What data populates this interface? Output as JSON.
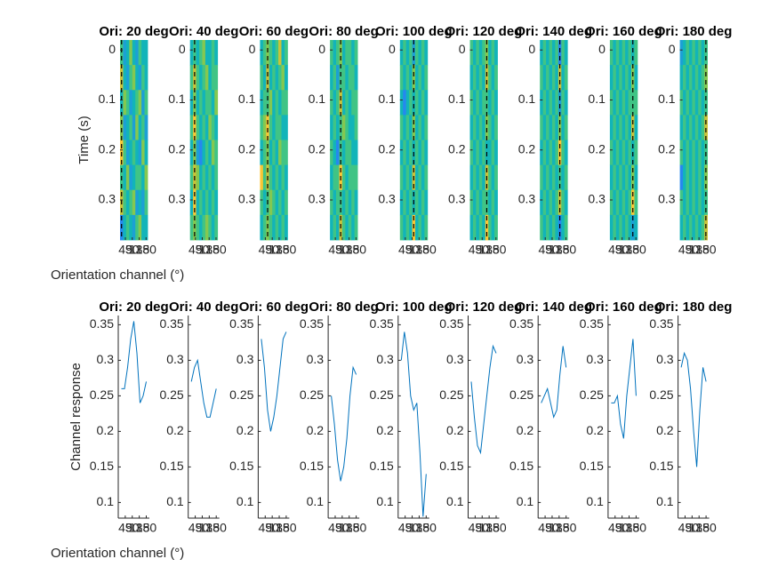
{
  "chart_data": [
    {
      "type": "heatmap",
      "ylabel": "Time (s)",
      "xlabel": "Orientation channel (°)",
      "channels": [
        20,
        40,
        60,
        80,
        100,
        120,
        140,
        160,
        180
      ],
      "xlim": [
        10,
        190
      ],
      "xticks": [
        45,
        90,
        135,
        180
      ],
      "ylim": [
        -0.02,
        0.38
      ],
      "yticks": [
        0,
        0.1,
        0.2,
        0.3
      ],
      "clim": [
        0,
        1
      ],
      "panels": [
        {
          "title": "Ori: 20 deg",
          "stim_ori": 20,
          "values": [
            [
              0.6,
              0.4,
              0.5,
              0.7,
              0.5,
              0.4,
              0.6,
              0.5,
              0.5
            ],
            [
              0.8,
              0.5,
              0.4,
              0.6,
              0.7,
              0.5,
              0.4,
              0.6,
              0.5
            ],
            [
              0.5,
              0.7,
              0.6,
              0.4,
              0.5,
              0.6,
              0.7,
              0.4,
              0.6
            ],
            [
              0.7,
              0.4,
              0.5,
              0.6,
              0.4,
              0.7,
              0.5,
              0.6,
              0.4
            ],
            [
              0.9,
              0.6,
              0.4,
              0.5,
              0.6,
              0.5,
              0.4,
              0.7,
              0.5
            ],
            [
              0.6,
              0.5,
              0.7,
              0.4,
              0.5,
              0.6,
              0.6,
              0.5,
              0.7
            ],
            [
              0.8,
              0.6,
              0.5,
              0.6,
              0.7,
              0.4,
              0.5,
              0.4,
              0.6
            ],
            [
              0.3,
              0.5,
              0.6,
              0.5,
              0.4,
              0.6,
              0.7,
              0.5,
              0.5
            ]
          ]
        },
        {
          "title": "Ori: 40 deg",
          "stim_ori": 40,
          "values": [
            [
              0.5,
              0.6,
              0.5,
              0.6,
              0.7,
              0.5,
              0.5,
              0.6,
              0.5
            ],
            [
              0.6,
              0.8,
              0.6,
              0.5,
              0.6,
              0.7,
              0.5,
              0.6,
              0.6
            ],
            [
              0.5,
              0.7,
              0.5,
              0.6,
              0.5,
              0.6,
              0.6,
              0.5,
              0.7
            ],
            [
              0.6,
              0.9,
              0.6,
              0.5,
              0.6,
              0.5,
              0.7,
              0.6,
              0.5
            ],
            [
              0.5,
              0.7,
              0.4,
              0.3,
              0.5,
              0.6,
              0.5,
              0.7,
              0.6
            ],
            [
              0.6,
              0.8,
              0.7,
              0.5,
              0.6,
              0.5,
              0.6,
              0.5,
              0.6
            ],
            [
              0.5,
              0.9,
              0.5,
              0.6,
              0.5,
              0.6,
              0.5,
              0.6,
              0.5
            ],
            [
              0.6,
              0.7,
              0.6,
              0.5,
              0.6,
              0.7,
              0.6,
              0.5,
              0.6
            ]
          ]
        },
        {
          "title": "Ori: 60 deg",
          "stim_ori": 60,
          "values": [
            [
              0.5,
              0.6,
              0.7,
              0.6,
              0.5,
              0.6,
              0.8,
              0.5,
              0.6
            ],
            [
              0.6,
              0.5,
              0.8,
              0.5,
              0.6,
              0.5,
              0.6,
              0.7,
              0.5
            ],
            [
              0.5,
              0.6,
              0.6,
              0.7,
              0.5,
              0.6,
              0.5,
              0.6,
              0.6
            ],
            [
              0.6,
              0.7,
              0.9,
              0.6,
              0.5,
              0.6,
              0.6,
              0.5,
              0.5
            ],
            [
              0.5,
              0.6,
              0.7,
              0.5,
              0.6,
              0.5,
              0.7,
              0.6,
              0.6
            ],
            [
              0.9,
              0.6,
              0.8,
              0.6,
              0.5,
              0.6,
              0.5,
              0.6,
              0.5
            ],
            [
              0.6,
              0.5,
              0.6,
              0.7,
              0.6,
              0.5,
              0.6,
              0.5,
              0.6
            ],
            [
              0.5,
              0.6,
              0.7,
              0.6,
              0.5,
              0.6,
              0.5,
              0.6,
              0.5
            ]
          ]
        },
        {
          "title": "Ori: 80 deg",
          "stim_ori": 80,
          "values": [
            [
              0.6,
              0.5,
              0.6,
              0.7,
              0.5,
              0.6,
              0.6,
              0.5,
              0.6
            ],
            [
              0.5,
              0.6,
              0.4,
              0.6,
              0.6,
              0.5,
              0.6,
              0.6,
              0.5
            ],
            [
              0.6,
              0.5,
              0.6,
              0.8,
              0.5,
              0.6,
              0.5,
              0.6,
              0.6
            ],
            [
              0.5,
              0.6,
              0.5,
              0.6,
              0.7,
              0.6,
              0.5,
              0.5,
              0.6
            ],
            [
              0.6,
              0.5,
              0.3,
              0.6,
              0.5,
              0.6,
              0.6,
              0.5,
              0.5
            ],
            [
              0.5,
              0.6,
              0.6,
              0.9,
              0.6,
              0.5,
              0.6,
              0.6,
              0.6
            ],
            [
              0.6,
              0.5,
              0.6,
              0.6,
              0.5,
              0.6,
              0.5,
              0.6,
              0.5
            ],
            [
              0.5,
              0.6,
              0.5,
              0.8,
              0.6,
              0.5,
              0.6,
              0.5,
              0.6
            ]
          ]
        },
        {
          "title": "Ori: 100 deg",
          "stim_ori": 100,
          "values": [
            [
              0.5,
              0.6,
              0.5,
              0.6,
              0.4,
              0.6,
              0.5,
              0.6,
              0.5
            ],
            [
              0.6,
              0.5,
              0.6,
              0.5,
              0.7,
              0.5,
              0.6,
              0.5,
              0.6
            ],
            [
              0.5,
              0.3,
              0.5,
              0.6,
              0.5,
              0.6,
              0.5,
              0.6,
              0.5
            ],
            [
              0.6,
              0.5,
              0.6,
              0.5,
              0.7,
              0.5,
              0.6,
              0.5,
              0.6
            ],
            [
              0.5,
              0.6,
              0.5,
              0.6,
              0.5,
              0.6,
              0.5,
              0.6,
              0.5
            ],
            [
              0.6,
              0.5,
              0.6,
              0.5,
              0.8,
              0.5,
              0.6,
              0.5,
              0.6
            ],
            [
              0.5,
              0.6,
              0.5,
              0.6,
              0.5,
              0.6,
              0.5,
              0.6,
              0.5
            ],
            [
              0.6,
              0.5,
              0.6,
              0.5,
              0.9,
              0.5,
              0.6,
              0.5,
              0.6
            ]
          ]
        },
        {
          "title": "Ori: 120 deg",
          "stim_ori": 120,
          "values": [
            [
              0.6,
              0.5,
              0.6,
              0.5,
              0.6,
              0.7,
              0.5,
              0.6,
              0.5
            ],
            [
              0.5,
              0.6,
              0.5,
              0.6,
              0.5,
              0.8,
              0.6,
              0.5,
              0.6
            ],
            [
              0.6,
              0.5,
              0.6,
              0.5,
              0.6,
              0.6,
              0.5,
              0.6,
              0.5
            ],
            [
              0.5,
              0.6,
              0.5,
              0.6,
              0.5,
              0.7,
              0.6,
              0.5,
              0.6
            ],
            [
              0.6,
              0.5,
              0.6,
              0.5,
              0.6,
              0.5,
              0.5,
              0.6,
              0.5
            ],
            [
              0.5,
              0.6,
              0.5,
              0.6,
              0.5,
              0.8,
              0.6,
              0.5,
              0.6
            ],
            [
              0.6,
              0.5,
              0.6,
              0.5,
              0.6,
              0.6,
              0.5,
              0.6,
              0.5
            ],
            [
              0.5,
              0.6,
              0.5,
              0.6,
              0.5,
              0.9,
              0.6,
              0.5,
              0.6
            ]
          ]
        },
        {
          "title": "Ori: 140 deg",
          "stim_ori": 140,
          "values": [
            [
              0.5,
              0.6,
              0.5,
              0.6,
              0.5,
              0.6,
              0.3,
              0.6,
              0.5
            ],
            [
              0.6,
              0.5,
              0.6,
              0.5,
              0.6,
              0.5,
              0.8,
              0.5,
              0.6
            ],
            [
              0.5,
              0.6,
              0.5,
              0.6,
              0.5,
              0.6,
              0.4,
              0.6,
              0.5
            ],
            [
              0.6,
              0.5,
              0.6,
              0.5,
              0.6,
              0.5,
              0.7,
              0.5,
              0.6
            ],
            [
              0.5,
              0.6,
              0.5,
              0.6,
              0.5,
              0.6,
              0.9,
              0.6,
              0.5
            ],
            [
              0.6,
              0.5,
              0.6,
              0.5,
              0.6,
              0.5,
              0.6,
              0.5,
              0.6
            ],
            [
              0.5,
              0.6,
              0.5,
              0.6,
              0.5,
              0.6,
              0.8,
              0.6,
              0.5
            ],
            [
              0.6,
              0.5,
              0.6,
              0.5,
              0.6,
              0.5,
              0.3,
              0.5,
              0.6
            ]
          ]
        },
        {
          "title": "Ori: 160 deg",
          "stim_ori": 160,
          "values": [
            [
              0.6,
              0.5,
              0.6,
              0.5,
              0.6,
              0.5,
              0.6,
              0.5,
              0.6
            ],
            [
              0.5,
              0.6,
              0.5,
              0.6,
              0.5,
              0.6,
              0.5,
              0.7,
              0.5
            ],
            [
              0.6,
              0.5,
              0.6,
              0.5,
              0.6,
              0.5,
              0.6,
              0.6,
              0.6
            ],
            [
              0.5,
              0.6,
              0.5,
              0.6,
              0.5,
              0.6,
              0.5,
              0.8,
              0.5
            ],
            [
              0.6,
              0.5,
              0.6,
              0.5,
              0.6,
              0.5,
              0.6,
              0.5,
              0.6
            ],
            [
              0.5,
              0.6,
              0.5,
              0.6,
              0.5,
              0.6,
              0.5,
              0.7,
              0.5
            ],
            [
              0.6,
              0.5,
              0.6,
              0.5,
              0.6,
              0.5,
              0.6,
              0.9,
              0.6
            ],
            [
              0.5,
              0.6,
              0.5,
              0.6,
              0.5,
              0.6,
              0.5,
              0.4,
              0.5
            ]
          ]
        },
        {
          "title": "Ori: 180 deg",
          "stim_ori": 180,
          "values": [
            [
              0.4,
              0.5,
              0.6,
              0.5,
              0.6,
              0.5,
              0.6,
              0.5,
              0.6
            ],
            [
              0.5,
              0.6,
              0.5,
              0.6,
              0.5,
              0.6,
              0.5,
              0.6,
              0.7
            ],
            [
              0.6,
              0.5,
              0.6,
              0.5,
              0.6,
              0.5,
              0.6,
              0.5,
              0.6
            ],
            [
              0.5,
              0.6,
              0.5,
              0.6,
              0.5,
              0.6,
              0.5,
              0.6,
              0.8
            ],
            [
              0.6,
              0.5,
              0.6,
              0.5,
              0.6,
              0.5,
              0.6,
              0.5,
              0.6
            ],
            [
              0.3,
              0.5,
              0.6,
              0.5,
              0.6,
              0.5,
              0.6,
              0.5,
              0.7
            ],
            [
              0.6,
              0.5,
              0.6,
              0.5,
              0.6,
              0.5,
              0.6,
              0.5,
              0.6
            ],
            [
              0.5,
              0.6,
              0.5,
              0.6,
              0.5,
              0.6,
              0.5,
              0.6,
              0.8
            ]
          ]
        }
      ]
    },
    {
      "type": "line",
      "ylabel": "Channel response",
      "xlabel": "Orientation channel (°)",
      "color": "#0072bd",
      "channels": [
        20,
        40,
        60,
        80,
        100,
        120,
        140,
        160,
        180
      ],
      "xlim": [
        0,
        200
      ],
      "xticks": [
        45,
        90,
        135,
        180
      ],
      "ylim": [
        0.078,
        0.363
      ],
      "yticks": [
        0.1,
        0.15,
        0.2,
        0.25,
        0.3,
        0.35
      ],
      "panels": [
        {
          "title": "Ori: 20 deg",
          "values": [
            0.26,
            0.26,
            0.29,
            0.33,
            0.355,
            0.31,
            0.24,
            0.25,
            0.27
          ]
        },
        {
          "title": "Ori: 40 deg",
          "values": [
            0.27,
            0.29,
            0.3,
            0.27,
            0.24,
            0.22,
            0.22,
            0.24,
            0.26
          ]
        },
        {
          "title": "Ori: 60 deg",
          "values": [
            0.33,
            0.29,
            0.23,
            0.2,
            0.22,
            0.25,
            0.29,
            0.33,
            0.34
          ]
        },
        {
          "title": "Ori: 80 deg",
          "values": [
            0.25,
            0.21,
            0.16,
            0.13,
            0.15,
            0.19,
            0.25,
            0.29,
            0.28
          ]
        },
        {
          "title": "Ori: 100 deg",
          "values": [
            0.3,
            0.34,
            0.31,
            0.25,
            0.23,
            0.24,
            0.17,
            0.08,
            0.14
          ]
        },
        {
          "title": "Ori: 120 deg",
          "values": [
            0.27,
            0.22,
            0.18,
            0.17,
            0.21,
            0.25,
            0.29,
            0.32,
            0.31
          ]
        },
        {
          "title": "Ori: 140 deg",
          "values": [
            0.24,
            0.25,
            0.26,
            0.24,
            0.22,
            0.23,
            0.28,
            0.32,
            0.29
          ]
        },
        {
          "title": "Ori: 160 deg",
          "values": [
            0.24,
            0.24,
            0.25,
            0.21,
            0.19,
            0.25,
            0.29,
            0.33,
            0.25
          ]
        },
        {
          "title": "Ori: 180 deg",
          "values": [
            0.29,
            0.31,
            0.3,
            0.26,
            0.2,
            0.15,
            0.23,
            0.29,
            0.27
          ]
        }
      ]
    }
  ]
}
